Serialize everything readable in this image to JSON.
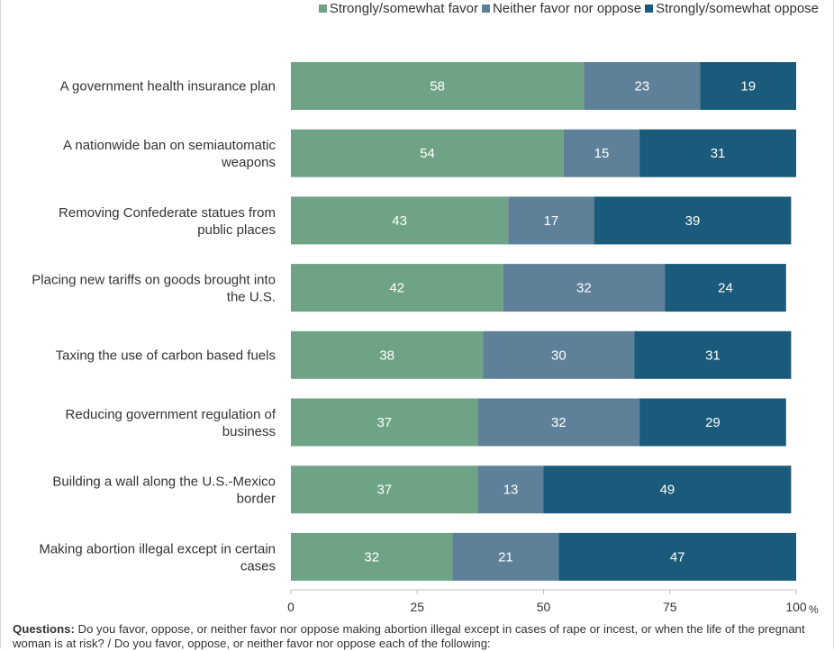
{
  "chart_data": {
    "type": "bar",
    "orientation": "horizontal",
    "stacked": true,
    "categories": [
      "A government health insurance plan",
      "A nationwide ban on semiautomatic weapons",
      "Removing Confederate statues from public places",
      "Placing new tariffs on goods brought into the U.S.",
      "Taxing the use of carbon based fuels",
      "Reducing government regulation of business",
      "Building a wall along the U.S.-Mexico border",
      "Making abortion illegal except in certain cases"
    ],
    "category_lines": [
      [
        "A government health insurance plan"
      ],
      [
        "A nationwide ban on semiautomatic",
        "weapons"
      ],
      [
        "Removing Confederate statues from",
        "public places"
      ],
      [
        "Placing new tariffs on goods brought into",
        "the U.S."
      ],
      [
        "Taxing the use of carbon based fuels"
      ],
      [
        "Reducing government regulation of",
        "business"
      ],
      [
        "Building a wall along the U.S.-Mexico",
        "border"
      ],
      [
        "Making abortion illegal except in certain",
        "cases"
      ]
    ],
    "series": [
      {
        "name": "Strongly/somewhat favor",
        "color": "#6fa386",
        "values": [
          58,
          54,
          43,
          42,
          38,
          37,
          37,
          32
        ]
      },
      {
        "name": "Neither favor nor oppose",
        "color": "#5e8199",
        "values": [
          23,
          15,
          17,
          32,
          30,
          32,
          13,
          21
        ]
      },
      {
        "name": "Strongly/somewhat oppose",
        "color": "#1a5a7a",
        "values": [
          19,
          31,
          39,
          24,
          31,
          29,
          49,
          47
        ]
      }
    ],
    "xlim": [
      0,
      100
    ],
    "xticks": [
      "0",
      "25",
      "50",
      "75",
      "100"
    ],
    "xunit": "%",
    "grid": false,
    "legend_position": "top-right"
  },
  "footnote": {
    "label": "Questions:",
    "text": " Do you favor, oppose, or neither favor nor oppose making abortion illegal except in cases of rape or incest, or when the life of the pregnant woman is at risk? / Do you favor, oppose, or neither favor nor oppose each of the following:"
  }
}
